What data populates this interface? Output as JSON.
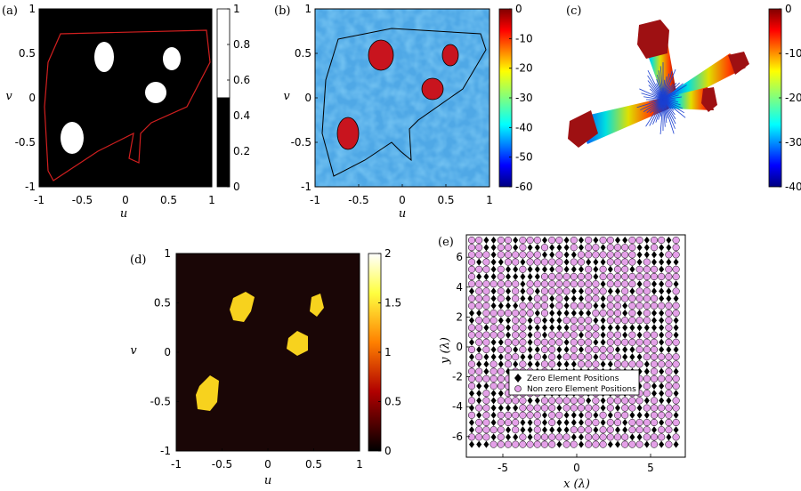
{
  "panels": {
    "a": {
      "label": "(a)",
      "xlabel": "u",
      "ylabel": "v",
      "xticks": [
        "-1",
        "-0.5",
        "0",
        "0.5",
        "1"
      ],
      "yticks": [
        "1",
        "0.5",
        "0",
        "-0.5",
        "-1"
      ],
      "cbar_ticks": [
        "1",
        "0.8",
        "0.6",
        "0.4",
        "0.2",
        "0"
      ]
    },
    "b": {
      "label": "(b)",
      "xlabel": "u",
      "ylabel": "v",
      "xticks": [
        "-1",
        "-0.5",
        "0",
        "0.5",
        "1"
      ],
      "yticks": [
        "1",
        "0.5",
        "0",
        "-0.5",
        "-1"
      ],
      "cbar_ticks": [
        "0",
        "-10",
        "-20",
        "-30",
        "-40",
        "-50",
        "-60"
      ]
    },
    "c": {
      "label": "(c)",
      "cbar_ticks": [
        "0",
        "-10",
        "-20",
        "-30",
        "-40"
      ]
    },
    "d": {
      "label": "(d)",
      "xlabel": "u",
      "ylabel": "v",
      "xticks": [
        "-1",
        "-0.5",
        "0",
        "0.5",
        "1"
      ],
      "yticks": [
        "1",
        "0.5",
        "0",
        "-0.5",
        "-1"
      ],
      "cbar_ticks": [
        "2",
        "1.5",
        "1",
        "0.5",
        "0"
      ]
    },
    "e": {
      "label": "(e)",
      "xlabel": "x (λ)",
      "ylabel": "y (λ)",
      "xticks": [
        "-5",
        "0",
        "5"
      ],
      "yticks": [
        "6",
        "4",
        "2",
        "0",
        "-2",
        "-4",
        "-6"
      ],
      "legend": [
        "Zero Element Positions",
        "Non zero Element Positions"
      ]
    }
  },
  "colors": {
    "boundary": "#d21f1f",
    "hotspot": "#c8141e",
    "field": "#5fb6e8",
    "array_on": "#e4a0e8",
    "array_off": "#000000",
    "spot_d": "#f7d21e"
  }
}
